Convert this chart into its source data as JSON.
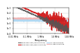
{
  "title": "",
  "xlabel": "Frequency",
  "ylabel": "",
  "background_color": "#ffffff",
  "xlim_log": [
    -1,
    0.18
  ],
  "ylim": [
    -8,
    -3
  ],
  "grid_color": "#cccccc",
  "legend_entries": [
    {
      "label": "Iwire measured (low amplitude)",
      "color": "#555555",
      "lw": 0.7
    },
    {
      "label": "Iwire measured (high amplitude)",
      "color": "#cc0000",
      "lw": 0.7
    },
    {
      "label": "Iinj low amplitude",
      "color": "#aad4f0",
      "lw": 0.9
    },
    {
      "label": "Iinj high amplitude",
      "color": "#f0b0b0",
      "lw": 0.9
    }
  ],
  "ytick_labels": [
    "1e-8",
    "1e-7",
    "1e-6",
    "1e-5",
    "1e-4",
    "1e-3"
  ],
  "ytick_values": [
    -8,
    -7,
    -6,
    -5,
    -4,
    -3
  ],
  "xtick_labels": [
    "0.01 MHz",
    "0.1 MHz",
    "1 MHz",
    "10 MHz",
    "100 MHz"
  ],
  "xtick_log_values": [
    -2,
    -1,
    0,
    1,
    2
  ]
}
